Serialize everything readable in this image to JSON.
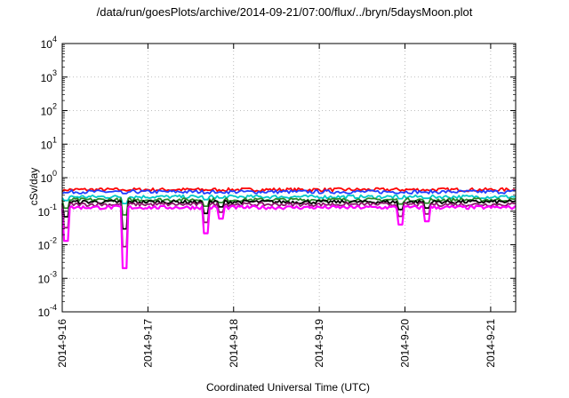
{
  "chart_data": {
    "type": "line",
    "title": "/data/run/goesPlots/archive/2014-09-21/07:00/flux/../bryn/5daysMoon.plot",
    "xlabel": "Coordinated Universal Time (UTC)",
    "ylabel": "cSv/day",
    "yscale": "log",
    "ylim": [
      0.0001,
      10000
    ],
    "xlim": [
      "2014-09-16",
      "2014-09-21T07:00"
    ],
    "y_ticks": [
      {
        "base": "10",
        "exp": "-4"
      },
      {
        "base": "10",
        "exp": "-3"
      },
      {
        "base": "10",
        "exp": "-2"
      },
      {
        "base": "10",
        "exp": "-1"
      },
      {
        "base": "10",
        "exp": "0"
      },
      {
        "base": "10",
        "exp": "1"
      },
      {
        "base": "10",
        "exp": "2"
      },
      {
        "base": "10",
        "exp": "3"
      },
      {
        "base": "10",
        "exp": "4"
      }
    ],
    "x_ticks": [
      "2014-9-16",
      "2014-9-17",
      "2014-9-18",
      "2014-9-19",
      "2014-9-20",
      "2014-9-21"
    ],
    "grid": true,
    "legend": "none",
    "series": [
      {
        "color": "#ff0000",
        "base": 0.44
      },
      {
        "color": "#1f3fff",
        "base": 0.38
      },
      {
        "color": "#00c8c8",
        "base": 0.27
      },
      {
        "color": "#2a8a2a",
        "base": 0.22
      },
      {
        "color": "#000000",
        "base": 0.19
      },
      {
        "color": "#8a1a6a",
        "base": 0.16
      },
      {
        "color": "#ff00ff",
        "base": 0.13
      }
    ],
    "dips": [
      {
        "x": "2014-09-16T01:00",
        "y": 0.013
      },
      {
        "x": "2014-09-16T17:30",
        "y": 0.002
      },
      {
        "x": "2014-09-17T16:00",
        "y": 0.022
      },
      {
        "x": "2014-09-17T20:30",
        "y": 0.06
      },
      {
        "x": "2014-09-19T22:30",
        "y": 0.04
      },
      {
        "x": "2014-09-20T06:00",
        "y": 0.05
      }
    ]
  }
}
